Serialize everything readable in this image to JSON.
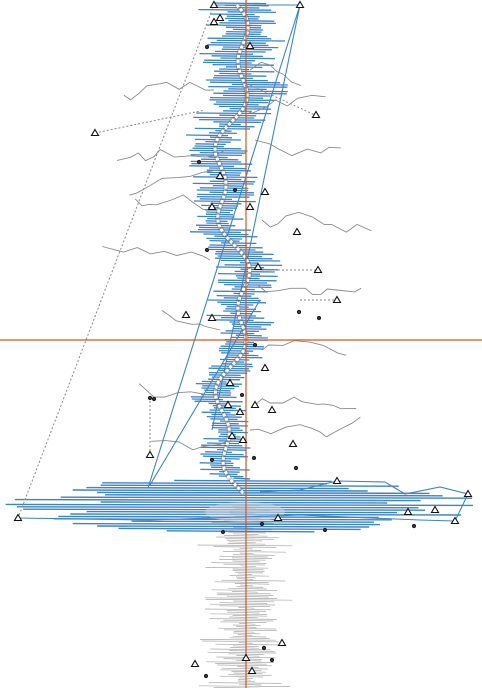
{
  "scene": {
    "kind": "neuron-morphology-trace-viewer",
    "colors": {
      "background": "#ffffff",
      "crosshair": "#d4561f",
      "trace_blue": "#3d84c6",
      "trace_gray": "#9a9a9a",
      "branch_gray": "#8a8a8a",
      "centerline": "#ffffff",
      "marker_stroke": "#111111"
    },
    "icons": {
      "triangle_marker": "triangle-marker-icon",
      "dot_marker": "dot-marker-icon"
    }
  }
}
